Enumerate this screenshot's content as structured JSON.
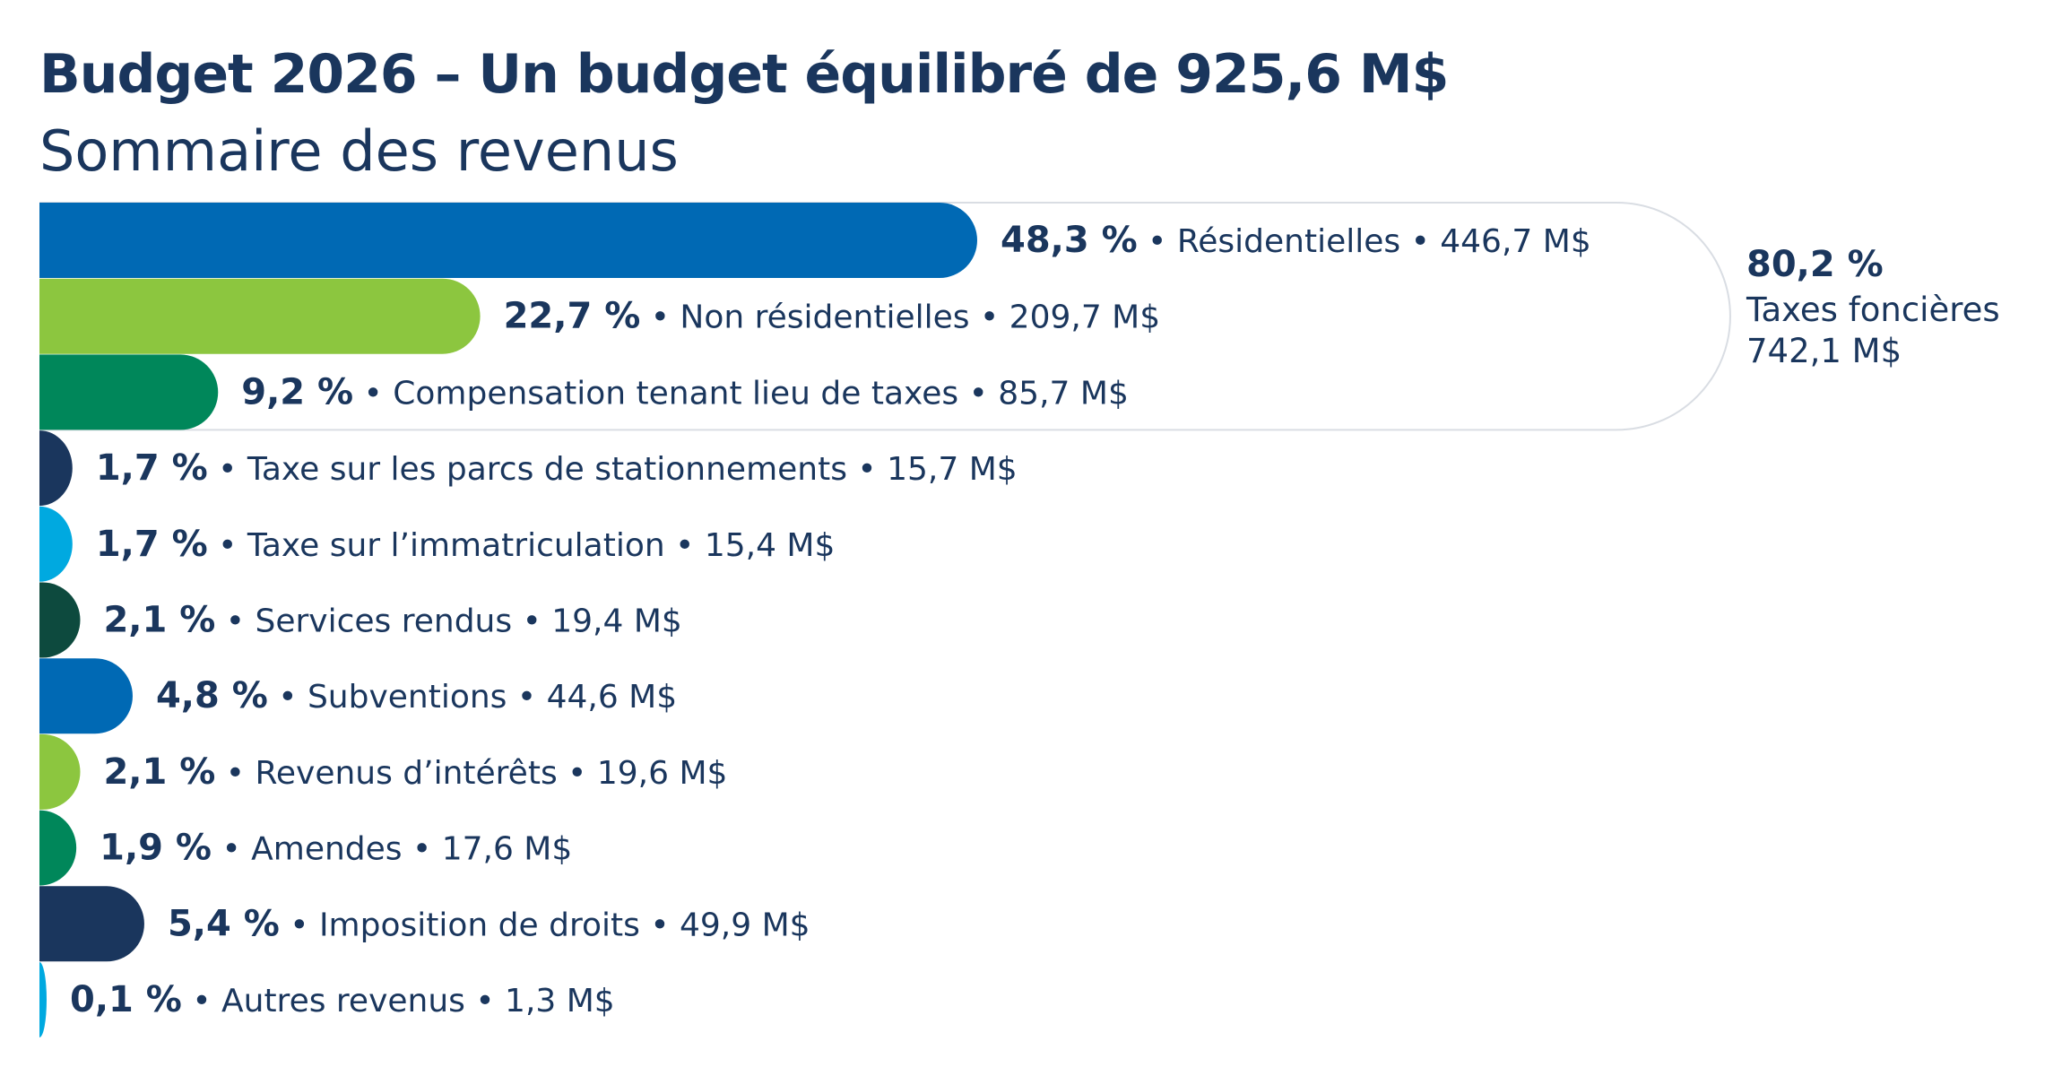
{
  "chart_data": {
    "type": "bar",
    "orientation": "horizontal",
    "title": "Budget 2026 – Un budget équilibré de 925,6 M$",
    "subtitle": "Sommaire des revenus",
    "separator": "•",
    "categories": [
      "Résidentielles",
      "Non résidentielles",
      "Compensation tenant lieu de taxes",
      "Taxe sur les parcs de stationnements",
      "Taxe sur l’immatriculation",
      "Services rendus",
      "Subventions",
      "Revenus d’intérêts",
      "Amendes",
      "Imposition de droits",
      "Autres revenus"
    ],
    "values": [
      48.3,
      22.7,
      9.2,
      1.7,
      1.7,
      2.1,
      4.8,
      2.1,
      1.9,
      5.4,
      0.1
    ],
    "percent_labels": [
      "48,3 %",
      "22,7 %",
      "9,2 %",
      "1,7 %",
      "1,7 %",
      "2,1 %",
      "4,8 %",
      "2,1 %",
      "1,9 %",
      "5,4 %",
      "0,1 %"
    ],
    "amount_labels": [
      "446,7 M$",
      "209,7 M$",
      "85,7 M$",
      "15,7 M$",
      "15,4 M$",
      "19,4 M$",
      "44,6 M$",
      "19,6 M$",
      "17,6 M$",
      "49,9 M$",
      "1,3 M$"
    ],
    "colors": [
      "#0069b4",
      "#8cc63f",
      "#00875a",
      "#1a365d",
      "#00a9e0",
      "#0d4a3e",
      "#0069b4",
      "#8cc63f",
      "#00875a",
      "#1a365d",
      "#00a9e0"
    ],
    "xlim": [
      0,
      48.3
    ],
    "grid": false,
    "group": {
      "percent": "80,2 %",
      "label": "Taxes foncières",
      "amount": "742,1 M$",
      "members": [
        0,
        1,
        2
      ],
      "position": "right"
    }
  }
}
